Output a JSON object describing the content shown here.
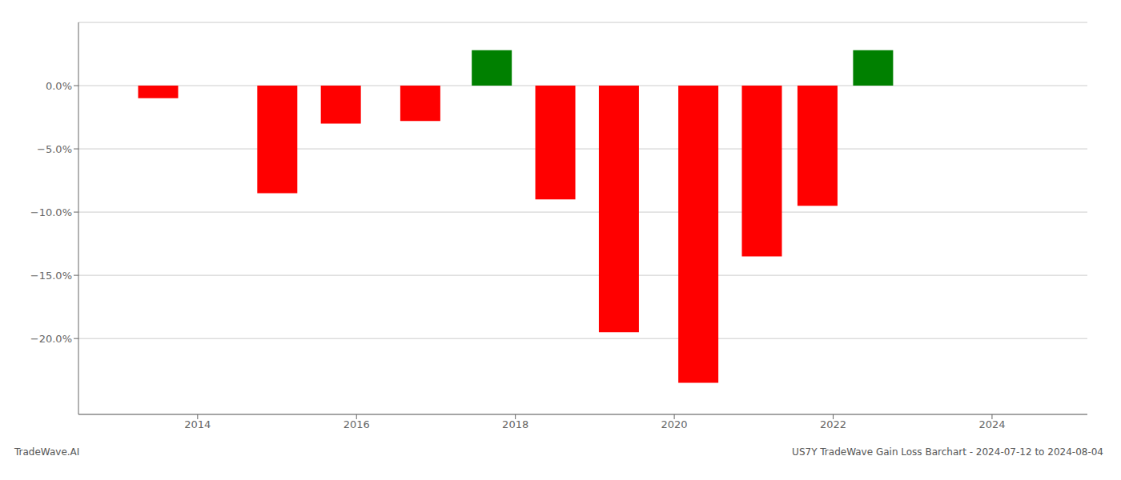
{
  "chart_data": {
    "type": "bar",
    "x": [
      2013.5,
      2015.0,
      2015.8,
      2016.8,
      2017.7,
      2018.5,
      2019.3,
      2020.3,
      2021.1,
      2021.8,
      2022.5,
      2023.3
    ],
    "values": [
      -1.0,
      -8.5,
      -3.0,
      -2.8,
      2.8,
      -9.0,
      -19.5,
      -23.5,
      -13.5,
      -9.5,
      2.8,
      0.0
    ],
    "colors": [
      "#ff0000",
      "#ff0000",
      "#ff0000",
      "#ff0000",
      "#008000",
      "#ff0000",
      "#ff0000",
      "#ff0000",
      "#ff0000",
      "#ff0000",
      "#008000",
      "#ff0000"
    ],
    "xlim": [
      2012.5,
      2025.2
    ],
    "xticks": [
      2014,
      2016,
      2018,
      2020,
      2022,
      2024
    ],
    "ylim": [
      -26,
      5
    ],
    "yticks": [
      {
        "value": 0.0,
        "label": "0.0%"
      },
      {
        "value": -5.0,
        "label": "−5.0%"
      },
      {
        "value": -10.0,
        "label": "−10.0%"
      },
      {
        "value": -15.0,
        "label": "−15.0%"
      },
      {
        "value": -20.0,
        "label": "−20.0%"
      }
    ],
    "grid": true,
    "annotations": [
      "TradeWave.AI",
      "US7Y TradeWave Gain Loss Barchart - 2024-07-12 to 2024-08-04"
    ]
  }
}
